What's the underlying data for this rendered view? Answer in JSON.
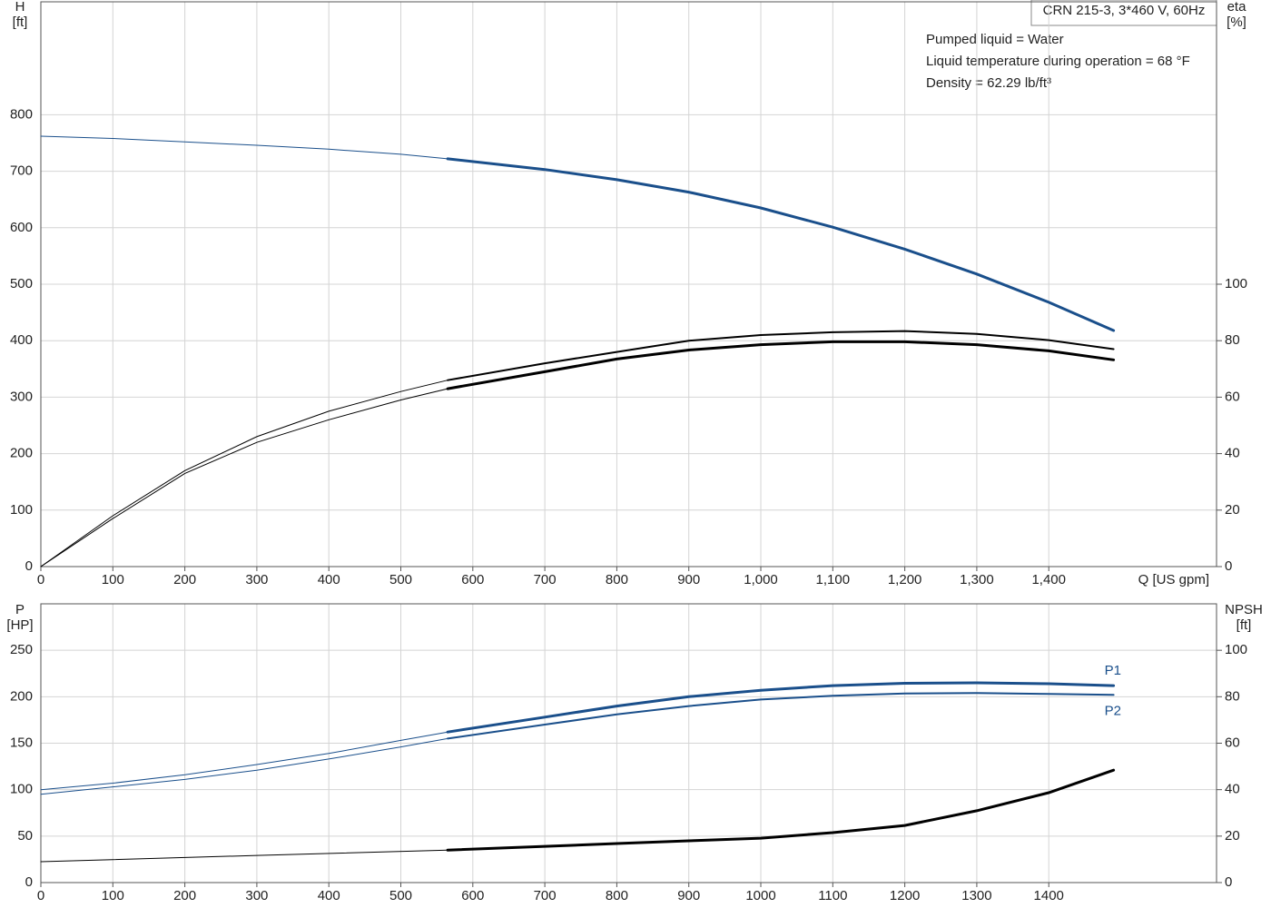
{
  "chart_data": [
    {
      "type": "line",
      "title": "CRN 215-3, 3*460 V, 60Hz",
      "annotations": [
        "Pumped liquid = Water",
        "Liquid temperature during operation = 68 °F",
        "Density = 62.29 lb/ft³"
      ],
      "ylabel": "H",
      "yunit": "[ft]",
      "y2label": "eta",
      "y2unit": "[%]",
      "xlabel": "Q [US gpm]",
      "xlim": [
        0,
        1633
      ],
      "ylim": [
        0,
        1000
      ],
      "y2lim": [
        0,
        200
      ],
      "grid": true,
      "xticks": [
        0,
        100,
        200,
        300,
        400,
        500,
        600,
        700,
        800,
        900,
        {
          "value": 1000,
          "label": "1,000"
        },
        {
          "value": 1100,
          "label": "1,100"
        },
        {
          "value": 1200,
          "label": "1,200"
        },
        {
          "value": 1300,
          "label": "1,300"
        },
        {
          "value": 1400,
          "label": "1,400"
        }
      ],
      "yticks": [
        0,
        100,
        200,
        300,
        400,
        500,
        600,
        700,
        800
      ],
      "y2ticks": [
        0,
        20,
        40,
        60,
        80,
        100
      ],
      "series": [
        {
          "color": "#1a4f8b",
          "width": 1,
          "x": [
            0,
            100,
            200,
            300,
            400,
            500,
            565
          ],
          "values": [
            762,
            758,
            752,
            746,
            739,
            730,
            722
          ]
        },
        {
          "color": "#1a4f8b",
          "width": 3,
          "x": [
            565,
            700,
            800,
            900,
            1000,
            1100,
            1200,
            1300,
            1400,
            1490
          ],
          "values": [
            722,
            703,
            685,
            663,
            635,
            601,
            562,
            518,
            468,
            418
          ]
        },
        {
          "color": "#000000",
          "width": 1,
          "axis": "y2",
          "x": [
            0,
            100,
            200,
            300,
            400,
            500,
            565
          ],
          "values": [
            0,
            18,
            34,
            46,
            55,
            62,
            66
          ]
        },
        {
          "color": "#000000",
          "width": 2,
          "axis": "y2",
          "x": [
            565,
            700,
            800,
            900,
            1000,
            1100,
            1200,
            1300,
            1400,
            1490
          ],
          "values": [
            66,
            72,
            76,
            80,
            82,
            83,
            83.4,
            82.4,
            80.2,
            77
          ]
        },
        {
          "color": "#000000",
          "width": 1,
          "axis": "y2",
          "x": [
            0,
            100,
            200,
            300,
            400,
            500,
            565
          ],
          "values": [
            0,
            17,
            33,
            44,
            52,
            59,
            63
          ]
        },
        {
          "color": "#000000",
          "width": 3,
          "axis": "y2",
          "x": [
            565,
            700,
            800,
            900,
            1000,
            1100,
            1200,
            1300,
            1400,
            1490
          ],
          "values": [
            63,
            69,
            73.5,
            76.7,
            78.6,
            79.6,
            79.6,
            78.6,
            76.4,
            73.2
          ]
        }
      ]
    },
    {
      "type": "line",
      "ylabel": "P",
      "yunit": "[HP]",
      "y2label": "NPSH",
      "y2unit": "[ft]",
      "xlim": [
        0,
        1633
      ],
      "ylim": [
        0,
        300
      ],
      "y2lim": [
        0,
        120
      ],
      "grid": true,
      "xticks": [
        0,
        100,
        200,
        300,
        400,
        500,
        600,
        700,
        800,
        900,
        1000,
        1100,
        1200,
        1300,
        1400
      ],
      "yticks": [
        0,
        50,
        100,
        150,
        200,
        250
      ],
      "y2ticks": [
        0,
        20,
        40,
        60,
        80,
        100
      ],
      "series": [
        {
          "color": "#1a4f8b",
          "width": 1,
          "x": [
            0,
            100,
            200,
            300,
            400,
            500,
            565
          ],
          "values": [
            100,
            107,
            116,
            127,
            139,
            153,
            162
          ]
        },
        {
          "color": "#1a4f8b",
          "width": 3,
          "label": "P1",
          "x": [
            565,
            700,
            800,
            900,
            1000,
            1100,
            1200,
            1300,
            1400,
            1490
          ],
          "values": [
            162,
            178,
            190,
            200,
            207,
            212,
            214.5,
            215,
            214,
            212
          ]
        },
        {
          "color": "#1a4f8b",
          "width": 1,
          "x": [
            0,
            100,
            200,
            300,
            400,
            500,
            565
          ],
          "values": [
            95,
            103,
            111,
            121,
            133,
            146,
            155
          ]
        },
        {
          "color": "#1a4f8b",
          "width": 2,
          "label": "P2",
          "x": [
            565,
            700,
            800,
            900,
            1000,
            1100,
            1200,
            1300,
            1400,
            1490
          ],
          "values": [
            155,
            170,
            181,
            190,
            197,
            201,
            203.5,
            204,
            203,
            202
          ]
        },
        {
          "color": "#000000",
          "width": 1,
          "axis": "y2",
          "x": [
            0,
            300,
            565
          ],
          "values": [
            9,
            11.7,
            14
          ]
        },
        {
          "color": "#000000",
          "width": 3,
          "axis": "y2",
          "x": [
            565,
            700,
            800,
            900,
            1000,
            1100,
            1200,
            1300,
            1400,
            1490
          ],
          "values": [
            14,
            15.6,
            16.8,
            18,
            19.1,
            21.5,
            24.6,
            30.9,
            38.7,
            48.4
          ]
        }
      ]
    }
  ]
}
